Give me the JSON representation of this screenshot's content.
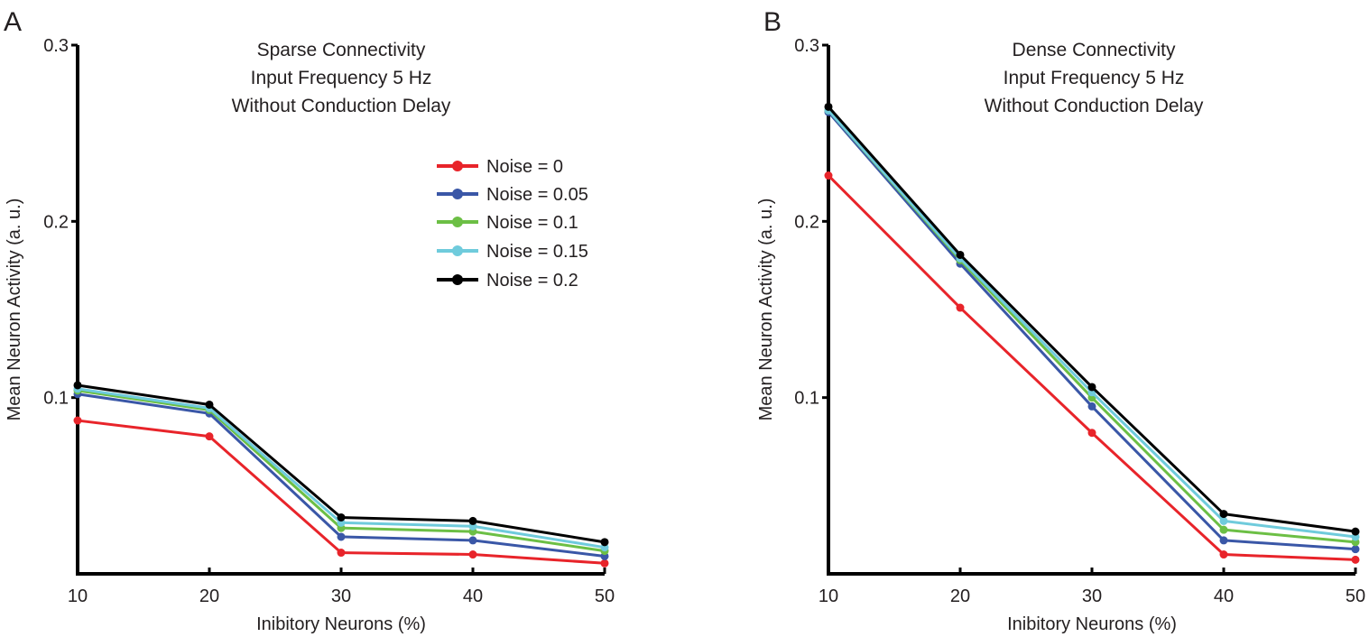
{
  "chart_data": [
    {
      "type": "line",
      "panel": "A",
      "title_lines": [
        "Sparse Connectivity",
        "Input Frequency 5 Hz",
        "Without Conduction Delay"
      ],
      "xlabel": "Inibitory Neurons (%)",
      "ylabel": "Mean Neuron Activity (a. u.)",
      "x": [
        10,
        20,
        30,
        40,
        50
      ],
      "xticks": [
        "10",
        "20",
        "30",
        "40",
        "50"
      ],
      "yticks": [
        "0.1",
        "0.2",
        "0.3"
      ],
      "ytick_values": [
        0.1,
        0.2,
        0.3
      ],
      "xlim": [
        10,
        50
      ],
      "ylim": [
        0,
        0.3
      ],
      "legend": true,
      "legend_position": "center-right",
      "series": [
        {
          "name": "Noise = 0",
          "color": "#e8242a",
          "values": [
            0.087,
            0.078,
            0.012,
            0.011,
            0.006
          ]
        },
        {
          "name": "Noise = 0.05",
          "color": "#3a57a7",
          "values": [
            0.102,
            0.091,
            0.021,
            0.019,
            0.01
          ]
        },
        {
          "name": "Noise = 0.1",
          "color": "#6cbf45",
          "values": [
            0.104,
            0.093,
            0.026,
            0.024,
            0.013
          ]
        },
        {
          "name": "Noise = 0.15",
          "color": "#6fcbdc",
          "values": [
            0.105,
            0.094,
            0.029,
            0.027,
            0.015
          ]
        },
        {
          "name": "Noise = 0.2",
          "color": "#000000",
          "values": [
            0.107,
            0.096,
            0.032,
            0.03,
            0.018
          ]
        }
      ]
    },
    {
      "type": "line",
      "panel": "B",
      "title_lines": [
        "Dense Connectivity",
        "Input Frequency 5 Hz",
        "Without Conduction Delay"
      ],
      "xlabel": "Inibitory Neurons (%)",
      "ylabel": "Mean Neuron Activity (a. u.)",
      "x": [
        10,
        20,
        30,
        40,
        50
      ],
      "xticks": [
        "10",
        "20",
        "30",
        "40",
        "50"
      ],
      "yticks": [
        "0.1",
        "0.2",
        "0.3"
      ],
      "ytick_values": [
        0.1,
        0.2,
        0.3
      ],
      "xlim": [
        10,
        50
      ],
      "ylim": [
        0,
        0.3
      ],
      "legend": false,
      "series": [
        {
          "name": "Noise = 0",
          "color": "#e8242a",
          "values": [
            0.226,
            0.151,
            0.08,
            0.011,
            0.008
          ]
        },
        {
          "name": "Noise = 0.05",
          "color": "#3a57a7",
          "values": [
            0.262,
            0.176,
            0.095,
            0.019,
            0.014
          ]
        },
        {
          "name": "Noise = 0.1",
          "color": "#6cbf45",
          "values": [
            0.263,
            0.178,
            0.1,
            0.025,
            0.018
          ]
        },
        {
          "name": "Noise = 0.15",
          "color": "#6fcbdc",
          "values": [
            0.263,
            0.179,
            0.103,
            0.03,
            0.021
          ]
        },
        {
          "name": "Noise = 0.2",
          "color": "#000000",
          "values": [
            0.265,
            0.181,
            0.106,
            0.034,
            0.024
          ]
        }
      ]
    }
  ]
}
